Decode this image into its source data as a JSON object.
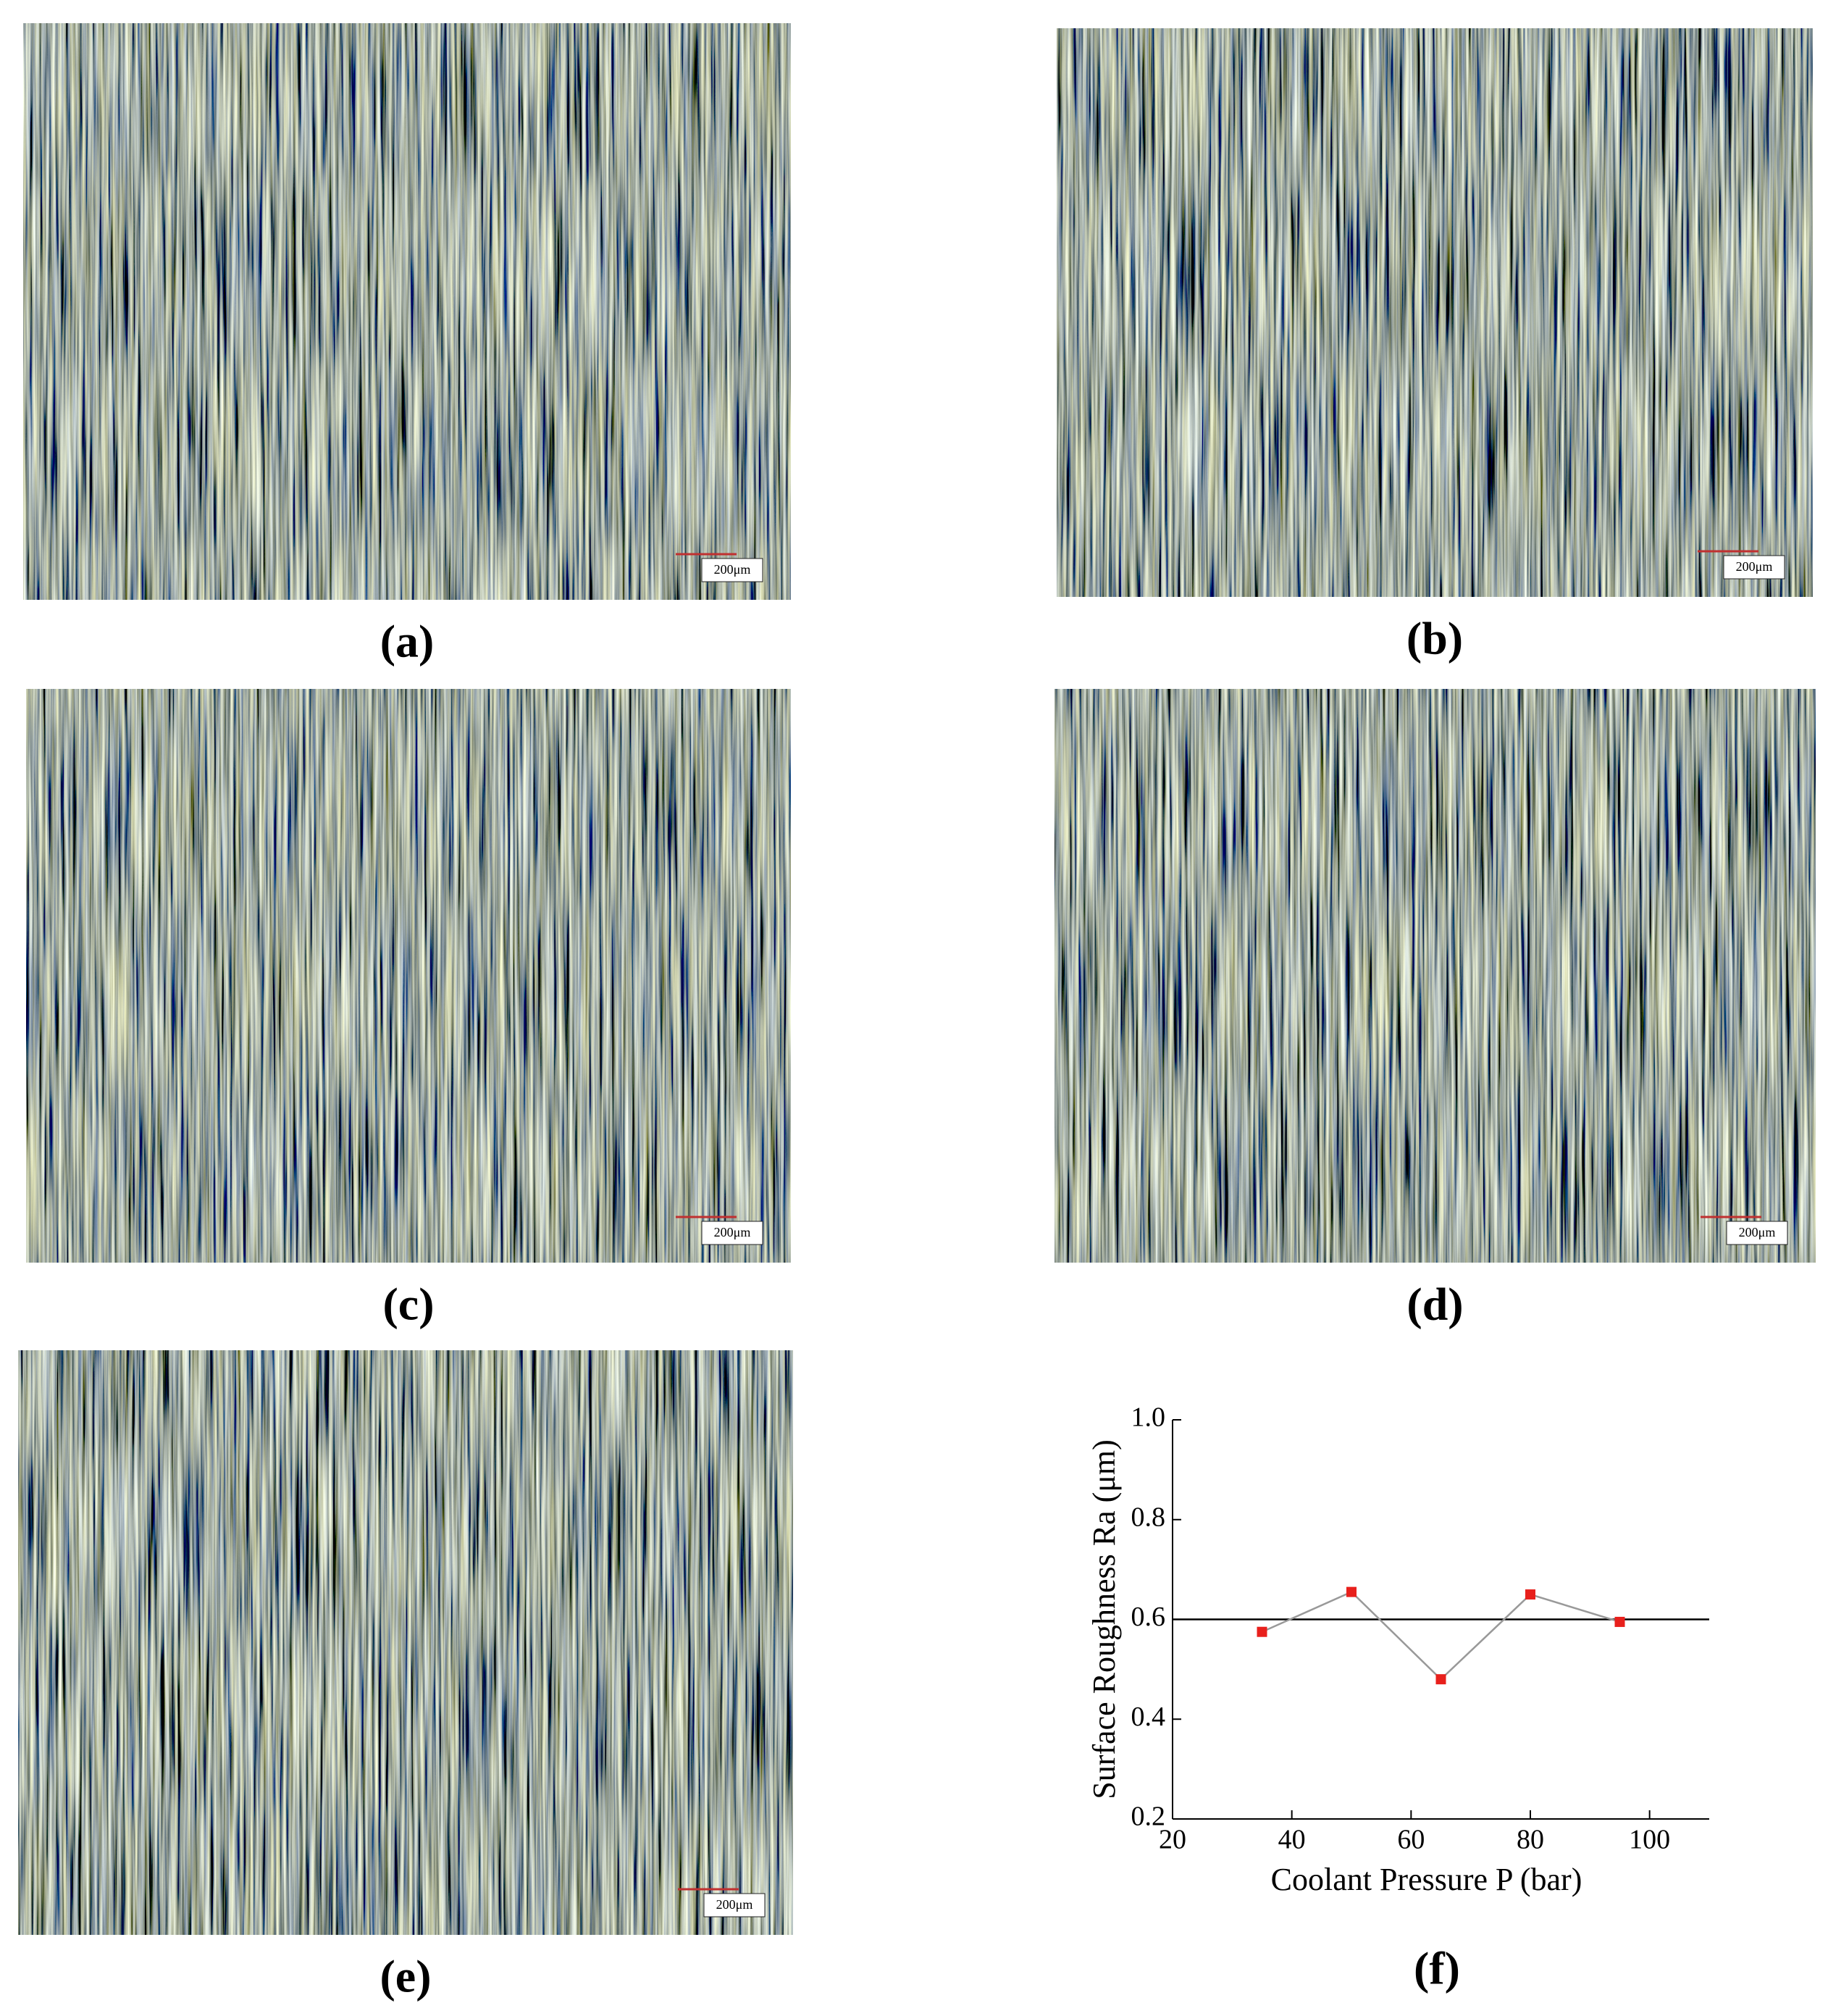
{
  "panels": [
    {
      "label": "(a)",
      "scale_bar": "200μm"
    },
    {
      "label": "(b)",
      "scale_bar": "200μm"
    },
    {
      "label": "(c)",
      "scale_bar": "200μm"
    },
    {
      "label": "(d)",
      "scale_bar": "200μm"
    },
    {
      "label": "(e)",
      "scale_bar": "200μm"
    }
  ],
  "chart_data": {
    "type": "line",
    "label": "(f)",
    "x_label": "Coolant Pressure P (bar)",
    "y_label": "Surface Roughness Ra (μm)",
    "series": [
      {
        "color": "#e8201c",
        "x": [
          35,
          50,
          65,
          80,
          95
        ],
        "values": [
          0.575,
          0.655,
          0.48,
          0.65,
          0.595
        ]
      }
    ],
    "reference_line": 0.6,
    "xlim": [
      20,
      110
    ],
    "xticks": [
      20,
      40,
      60,
      80,
      100
    ],
    "ylim": [
      0.2,
      1.0
    ],
    "yticks": [
      0.2,
      0.4,
      0.6,
      0.8,
      {
        "value": 1.0,
        "label": "1.0"
      }
    ]
  }
}
